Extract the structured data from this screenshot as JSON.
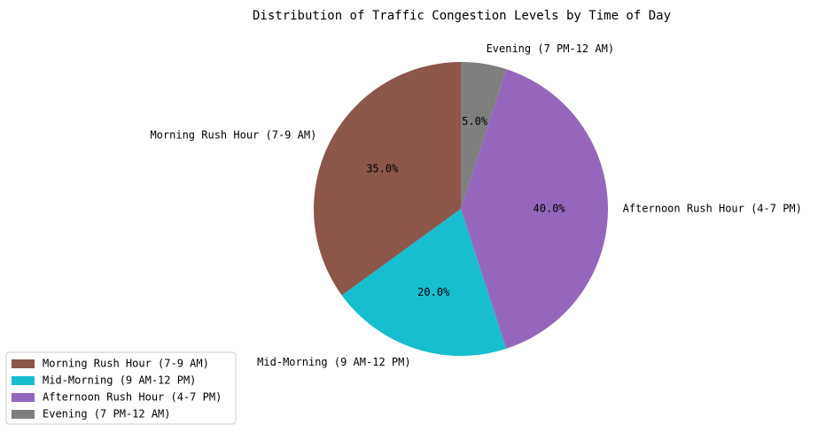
{
  "chart_data": {
    "type": "pie",
    "title": "Distribution of Traffic Congestion Levels by Time of Day",
    "start_angle_deg": 90,
    "direction": "counterclockwise",
    "legend_position": "lower-left",
    "slices": [
      {
        "label": "Morning Rush Hour (7-9 AM)",
        "value": 35.0,
        "pct_label": "35.0%",
        "color": "#8c564b"
      },
      {
        "label": "Mid-Morning (9 AM-12 PM)",
        "value": 20.0,
        "pct_label": "20.0%",
        "color": "#17becf"
      },
      {
        "label": "Afternoon Rush Hour (4-7 PM)",
        "value": 40.0,
        "pct_label": "40.0%",
        "color": "#9467bd"
      },
      {
        "label": "Evening (7 PM-12 AM)",
        "value": 5.0,
        "pct_label": "5.0%",
        "color": "#7f7f7f"
      }
    ]
  }
}
